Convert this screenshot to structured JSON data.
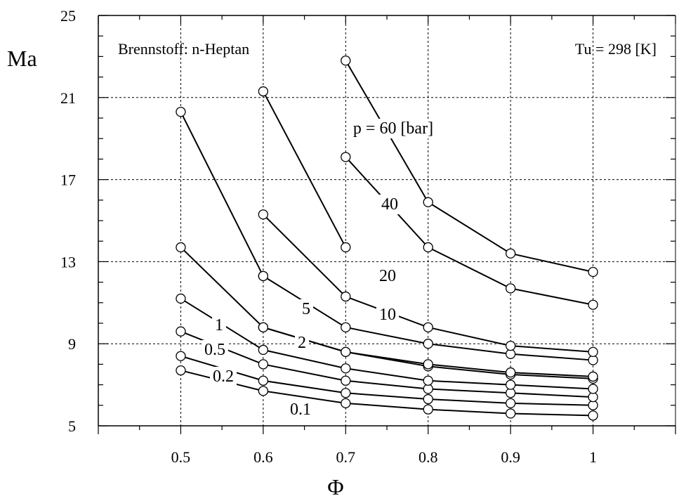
{
  "chart_data": {
    "type": "line",
    "xlabel": "Φ",
    "ylabel": "Ma",
    "xlim": [
      0.4,
      1.1
    ],
    "ylim": [
      5,
      25
    ],
    "xticks": [
      0.5,
      0.6,
      0.7,
      0.8,
      0.9,
      1
    ],
    "xtick_labels": [
      "0.5",
      "0.6",
      "0.7",
      "0.8",
      "0.9",
      "1"
    ],
    "yticks": [
      5,
      9,
      13,
      17,
      21,
      25
    ],
    "ytick_labels": [
      "5",
      "9",
      "13",
      "17",
      "21",
      "25"
    ],
    "grid": true,
    "annotations": {
      "fuel": "Brennstoff: n-Heptan",
      "temperature": "Tu = 298 [K]"
    },
    "series": [
      {
        "label": "0.1",
        "x": [
          0.5,
          0.6,
          0.7,
          0.8,
          0.9,
          1.0
        ],
        "y": [
          7.7,
          6.7,
          6.1,
          5.8,
          5.6,
          5.5
        ]
      },
      {
        "label": "0.2",
        "x": [
          0.5,
          0.6,
          0.7,
          0.8,
          0.9,
          1.0
        ],
        "y": [
          8.4,
          7.2,
          6.6,
          6.3,
          6.1,
          6.0
        ]
      },
      {
        "label": "0.5",
        "x": [
          0.5,
          0.6,
          0.7,
          0.8,
          0.9,
          1.0
        ],
        "y": [
          9.6,
          8.0,
          7.2,
          6.8,
          6.6,
          6.4
        ]
      },
      {
        "label": "1",
        "x": [
          0.5,
          0.6,
          0.7,
          0.8,
          0.9,
          1.0
        ],
        "y": [
          11.2,
          8.7,
          7.8,
          7.2,
          7.0,
          6.8
        ]
      },
      {
        "label": "2",
        "x": [
          0.6,
          0.7,
          0.8,
          0.9,
          1.0
        ],
        "y": [
          9.8,
          8.6,
          7.9,
          7.5,
          7.3
        ]
      },
      {
        "label": "5",
        "x": [
          0.5,
          0.6,
          0.7,
          0.8,
          0.9,
          1.0
        ],
        "y": [
          13.7,
          9.8,
          8.6,
          8.0,
          7.6,
          7.4
        ]
      },
      {
        "label": "10",
        "x": [
          0.6,
          0.7,
          0.8,
          0.9,
          1.0
        ],
        "y": [
          12.3,
          9.8,
          9.0,
          8.5,
          8.2
        ]
      },
      {
        "label": "20",
        "x": [
          0.6,
          0.7,
          0.8,
          0.9,
          1.0
        ],
        "y": [
          15.3,
          11.3,
          9.8,
          8.9,
          8.6
        ]
      },
      {
        "label": "40",
        "x": [
          0.7,
          0.8,
          0.9,
          1.0
        ],
        "y": [
          18.1,
          13.7,
          11.7,
          10.9
        ]
      },
      {
        "label": "p = 60 [bar]",
        "x": [
          0.7,
          0.8,
          0.9,
          1.0
        ],
        "y": [
          22.8,
          15.9,
          13.4,
          12.5
        ]
      }
    ],
    "extra_series": [
      {
        "label": "",
        "x": [
          0.6,
          0.7
        ],
        "y": [
          21.3,
          13.7
        ]
      },
      {
        "label": "",
        "x": [
          0.5,
          0.6
        ],
        "y": [
          20.3,
          12.3
        ]
      }
    ]
  }
}
